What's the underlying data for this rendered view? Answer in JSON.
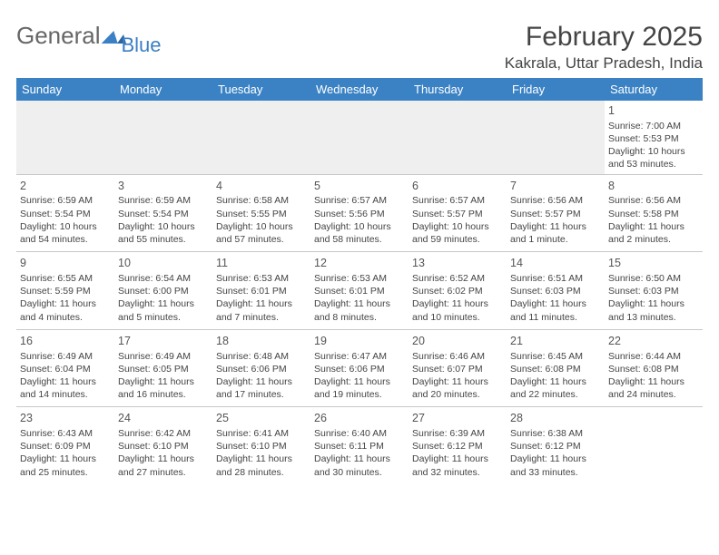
{
  "logo": {
    "text1": "General",
    "text2": "Blue"
  },
  "title": "February 2025",
  "location": "Kakrala, Uttar Pradesh, India",
  "headers": [
    "Sunday",
    "Monday",
    "Tuesday",
    "Wednesday",
    "Thursday",
    "Friday",
    "Saturday"
  ],
  "weeks": [
    [
      null,
      null,
      null,
      null,
      null,
      null,
      {
        "n": "1",
        "sr": "7:00 AM",
        "ss": "5:53 PM",
        "dl": "10 hours and 53 minutes."
      }
    ],
    [
      {
        "n": "2",
        "sr": "6:59 AM",
        "ss": "5:54 PM",
        "dl": "10 hours and 54 minutes."
      },
      {
        "n": "3",
        "sr": "6:59 AM",
        "ss": "5:54 PM",
        "dl": "10 hours and 55 minutes."
      },
      {
        "n": "4",
        "sr": "6:58 AM",
        "ss": "5:55 PM",
        "dl": "10 hours and 57 minutes."
      },
      {
        "n": "5",
        "sr": "6:57 AM",
        "ss": "5:56 PM",
        "dl": "10 hours and 58 minutes."
      },
      {
        "n": "6",
        "sr": "6:57 AM",
        "ss": "5:57 PM",
        "dl": "10 hours and 59 minutes."
      },
      {
        "n": "7",
        "sr": "6:56 AM",
        "ss": "5:57 PM",
        "dl": "11 hours and 1 minute."
      },
      {
        "n": "8",
        "sr": "6:56 AM",
        "ss": "5:58 PM",
        "dl": "11 hours and 2 minutes."
      }
    ],
    [
      {
        "n": "9",
        "sr": "6:55 AM",
        "ss": "5:59 PM",
        "dl": "11 hours and 4 minutes."
      },
      {
        "n": "10",
        "sr": "6:54 AM",
        "ss": "6:00 PM",
        "dl": "11 hours and 5 minutes."
      },
      {
        "n": "11",
        "sr": "6:53 AM",
        "ss": "6:01 PM",
        "dl": "11 hours and 7 minutes."
      },
      {
        "n": "12",
        "sr": "6:53 AM",
        "ss": "6:01 PM",
        "dl": "11 hours and 8 minutes."
      },
      {
        "n": "13",
        "sr": "6:52 AM",
        "ss": "6:02 PM",
        "dl": "11 hours and 10 minutes."
      },
      {
        "n": "14",
        "sr": "6:51 AM",
        "ss": "6:03 PM",
        "dl": "11 hours and 11 minutes."
      },
      {
        "n": "15",
        "sr": "6:50 AM",
        "ss": "6:03 PM",
        "dl": "11 hours and 13 minutes."
      }
    ],
    [
      {
        "n": "16",
        "sr": "6:49 AM",
        "ss": "6:04 PM",
        "dl": "11 hours and 14 minutes."
      },
      {
        "n": "17",
        "sr": "6:49 AM",
        "ss": "6:05 PM",
        "dl": "11 hours and 16 minutes."
      },
      {
        "n": "18",
        "sr": "6:48 AM",
        "ss": "6:06 PM",
        "dl": "11 hours and 17 minutes."
      },
      {
        "n": "19",
        "sr": "6:47 AM",
        "ss": "6:06 PM",
        "dl": "11 hours and 19 minutes."
      },
      {
        "n": "20",
        "sr": "6:46 AM",
        "ss": "6:07 PM",
        "dl": "11 hours and 20 minutes."
      },
      {
        "n": "21",
        "sr": "6:45 AM",
        "ss": "6:08 PM",
        "dl": "11 hours and 22 minutes."
      },
      {
        "n": "22",
        "sr": "6:44 AM",
        "ss": "6:08 PM",
        "dl": "11 hours and 24 minutes."
      }
    ],
    [
      {
        "n": "23",
        "sr": "6:43 AM",
        "ss": "6:09 PM",
        "dl": "11 hours and 25 minutes."
      },
      {
        "n": "24",
        "sr": "6:42 AM",
        "ss": "6:10 PM",
        "dl": "11 hours and 27 minutes."
      },
      {
        "n": "25",
        "sr": "6:41 AM",
        "ss": "6:10 PM",
        "dl": "11 hours and 28 minutes."
      },
      {
        "n": "26",
        "sr": "6:40 AM",
        "ss": "6:11 PM",
        "dl": "11 hours and 30 minutes."
      },
      {
        "n": "27",
        "sr": "6:39 AM",
        "ss": "6:12 PM",
        "dl": "11 hours and 32 minutes."
      },
      {
        "n": "28",
        "sr": "6:38 AM",
        "ss": "6:12 PM",
        "dl": "11 hours and 33 minutes."
      },
      null
    ]
  ],
  "labels": {
    "sunrise": "Sunrise:",
    "sunset": "Sunset:",
    "daylight": "Daylight:"
  }
}
